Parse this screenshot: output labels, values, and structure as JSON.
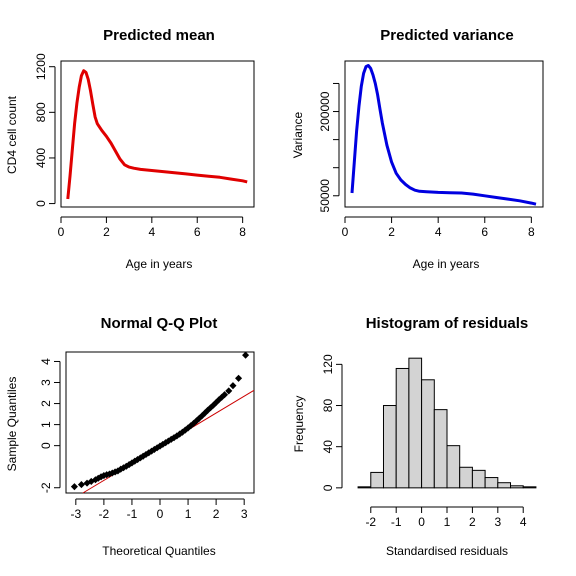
{
  "chart_data": [
    {
      "id": "mean",
      "type": "line",
      "title": "Predicted mean",
      "xlabel": "Age in years",
      "ylabel": "CD4 cell count",
      "xlim": [
        0,
        8.5
      ],
      "ylim": [
        -30,
        1250
      ],
      "xticks": [
        0,
        2,
        4,
        6,
        8
      ],
      "yticks": [
        0,
        400,
        800,
        1200
      ],
      "color": "#e00000",
      "x": [
        0.3,
        0.4,
        0.5,
        0.6,
        0.7,
        0.8,
        0.9,
        1.0,
        1.1,
        1.2,
        1.3,
        1.4,
        1.5,
        1.6,
        1.8,
        2.0,
        2.2,
        2.4,
        2.6,
        2.8,
        3.0,
        3.2,
        3.5,
        4.0,
        4.5,
        5.0,
        5.5,
        6.0,
        6.5,
        7.0,
        7.5,
        8.0,
        8.2
      ],
      "y": [
        40,
        250,
        480,
        700,
        880,
        1020,
        1120,
        1165,
        1150,
        1090,
        990,
        870,
        760,
        700,
        640,
        590,
        530,
        460,
        390,
        340,
        320,
        310,
        300,
        290,
        280,
        270,
        260,
        250,
        240,
        230,
        215,
        200,
        190
      ]
    },
    {
      "id": "variance",
      "type": "line",
      "title": "Predicted variance",
      "xlabel": "Age in years",
      "ylabel": "Variance",
      "xlim": [
        0,
        8.5
      ],
      "ylim": [
        30000,
        290000
      ],
      "xticks": [
        0,
        2,
        4,
        6,
        8
      ],
      "yticks": [
        50000,
        200000
      ],
      "yticks_minor": [
        100000,
        150000,
        250000
      ],
      "color": "#0000e0",
      "x": [
        0.3,
        0.4,
        0.5,
        0.6,
        0.7,
        0.8,
        0.9,
        1.0,
        1.1,
        1.2,
        1.3,
        1.4,
        1.5,
        1.6,
        1.8,
        2.0,
        2.2,
        2.4,
        2.6,
        2.8,
        3.0,
        3.2,
        3.5,
        4.0,
        4.5,
        5.0,
        5.5,
        6.0,
        6.5,
        7.0,
        7.5,
        8.0,
        8.2
      ],
      "y": [
        55000,
        110000,
        165000,
        210000,
        245000,
        268000,
        280000,
        282000,
        277000,
        265000,
        250000,
        230000,
        205000,
        180000,
        140000,
        110000,
        90000,
        78000,
        70000,
        64000,
        60000,
        58000,
        57000,
        56000,
        55500,
        55000,
        53000,
        50000,
        47000,
        44000,
        41000,
        37000,
        35000
      ]
    },
    {
      "id": "qq",
      "type": "scatter",
      "title": "Normal Q-Q Plot",
      "xlabel": "Theoretical Quantiles",
      "ylabel": "Sample Quantiles",
      "xlim": [
        -3.35,
        3.35
      ],
      "ylim": [
        -2.25,
        4.45
      ],
      "xticks": [
        -3,
        -2,
        -1,
        0,
        1,
        2,
        3
      ],
      "yticks": [
        -2,
        0,
        1,
        2,
        3,
        4
      ],
      "qq_line": {
        "slope": 0.8,
        "intercept": -0.05,
        "color": "#cc0000"
      },
      "x": [
        -3.05,
        -2.8,
        -2.6,
        -2.45,
        -2.3,
        -2.2,
        -2.1,
        -2.0,
        -1.9,
        -1.8,
        -1.7,
        -1.6,
        -1.5,
        -1.4,
        -1.3,
        -1.2,
        -1.1,
        -1.0,
        -0.9,
        -0.8,
        -0.7,
        -0.6,
        -0.5,
        -0.4,
        -0.3,
        -0.2,
        -0.1,
        0.0,
        0.1,
        0.2,
        0.3,
        0.4,
        0.5,
        0.6,
        0.7,
        0.8,
        0.9,
        1.0,
        1.1,
        1.2,
        1.3,
        1.4,
        1.5,
        1.6,
        1.7,
        1.8,
        1.9,
        2.0,
        2.1,
        2.2,
        2.3,
        2.45,
        2.6,
        2.8,
        3.05
      ],
      "y": [
        -1.95,
        -1.85,
        -1.78,
        -1.7,
        -1.62,
        -1.55,
        -1.48,
        -1.42,
        -1.38,
        -1.35,
        -1.3,
        -1.25,
        -1.2,
        -1.12,
        -1.05,
        -0.98,
        -0.9,
        -0.82,
        -0.74,
        -0.66,
        -0.58,
        -0.5,
        -0.42,
        -0.34,
        -0.26,
        -0.18,
        -0.1,
        -0.02,
        0.06,
        0.14,
        0.22,
        0.3,
        0.38,
        0.46,
        0.55,
        0.64,
        0.74,
        0.84,
        0.95,
        1.06,
        1.18,
        1.3,
        1.42,
        1.55,
        1.68,
        1.8,
        1.92,
        2.05,
        2.18,
        2.3,
        2.42,
        2.6,
        2.85,
        3.2,
        4.3
      ]
    },
    {
      "id": "hist",
      "type": "bar",
      "title": "Histogram of residuals",
      "xlabel": "Standardised residuals",
      "ylabel": "Frequency",
      "xlim": [
        -2.7,
        4.7
      ],
      "ylim": [
        -5,
        132
      ],
      "xticks": [
        -2,
        -1,
        0,
        1,
        2,
        3,
        4
      ],
      "yticks": [
        0,
        40,
        80,
        120
      ],
      "bin_edges": [
        -2.5,
        -2.0,
        -1.5,
        -1.0,
        -0.5,
        0.0,
        0.5,
        1.0,
        1.5,
        2.0,
        2.5,
        3.0,
        3.5,
        4.0,
        4.5
      ],
      "values": [
        1,
        15,
        80,
        116,
        126,
        105,
        76,
        41,
        20,
        17,
        10,
        5,
        2,
        1
      ],
      "fill": "#d3d3d3"
    }
  ]
}
